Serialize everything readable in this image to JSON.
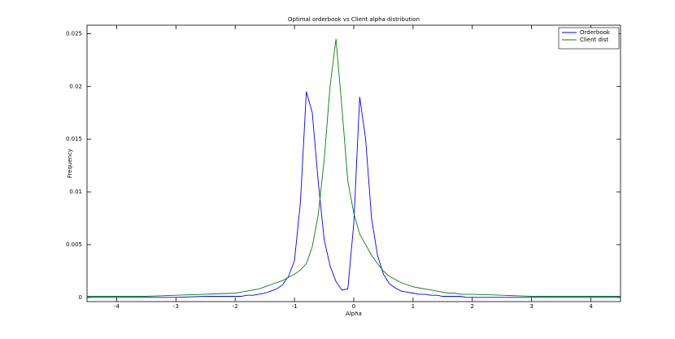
{
  "chart_data": {
    "type": "line",
    "title": "Optimal orderbook vs Client alpha distribution",
    "xlabel": "Alpha",
    "ylabel": "Frequency",
    "x": [
      -4.5,
      -4,
      -3.5,
      -3,
      -2.5,
      -2.0,
      -1.9,
      -1.8,
      -1.7,
      -1.6,
      -1.5,
      -1.4,
      -1.3,
      -1.2,
      -1.1,
      -1.0,
      -0.9,
      -0.8,
      -0.7,
      -0.6,
      -0.5,
      -0.4,
      -0.3,
      -0.2,
      -0.1,
      0,
      0.1,
      0.2,
      0.3,
      0.4,
      0.5,
      0.6,
      0.7,
      0.8,
      0.9,
      1.0,
      1.1,
      1.2,
      1.3,
      1.4,
      1.5,
      1.6,
      1.7,
      1.8,
      1.9,
      2.0,
      2.5,
      3,
      3.5,
      4,
      4.5
    ],
    "series": [
      {
        "name": "Orderbook",
        "color": "#0000ff",
        "values": [
          0,
          0,
          0,
          0,
          0.0001,
          0.0001,
          0.0001,
          0.0002,
          0.0002,
          0.0003,
          0.0004,
          0.0006,
          0.0008,
          0.0012,
          0.002,
          0.0035,
          0.009,
          0.0195,
          0.0175,
          0.011,
          0.0055,
          0.003,
          0.0015,
          0.0007,
          0.0008,
          0.007,
          0.019,
          0.015,
          0.0075,
          0.004,
          0.0022,
          0.0013,
          0.0009,
          0.0006,
          0.0005,
          0.0004,
          0.0003,
          0.0003,
          0.0002,
          0.0002,
          0.0001,
          0.0001,
          0.0001,
          0.0001,
          0,
          0,
          0,
          0,
          0,
          0,
          0
        ]
      },
      {
        "name": "Client dist",
        "color": "#008000",
        "values": [
          0.0001,
          0.0001,
          0.0001,
          0.0002,
          0.0003,
          0.0004,
          0.0005,
          0.0006,
          0.0007,
          0.0008,
          0.001,
          0.0012,
          0.0014,
          0.0016,
          0.0019,
          0.0022,
          0.0026,
          0.0032,
          0.0048,
          0.0078,
          0.013,
          0.02,
          0.0245,
          0.018,
          0.011,
          0.008,
          0.006,
          0.005,
          0.004,
          0.0032,
          0.0025,
          0.002,
          0.0017,
          0.0014,
          0.0012,
          0.001,
          0.0009,
          0.0008,
          0.0007,
          0.0006,
          0.0005,
          0.0004,
          0.0004,
          0.0003,
          0.0003,
          0.0003,
          0.0002,
          0.0001,
          0.0001,
          0.0001,
          0.0001
        ]
      }
    ],
    "xlim": [
      -4.5,
      4.5
    ],
    "xticks": [
      -4,
      -3,
      -2,
      -1,
      0,
      1,
      2,
      3,
      4
    ],
    "ylim": [
      -0.0004,
      0.0258
    ],
    "yticks": [
      0,
      0.005,
      0.01,
      0.015,
      0.02,
      0.025
    ],
    "legend": "upper right"
  }
}
